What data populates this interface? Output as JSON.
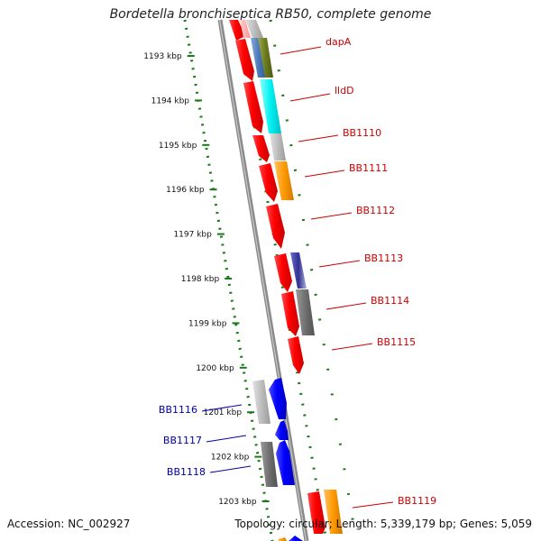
{
  "title": "Bordetella bronchiseptica RB50, complete genome",
  "footer": {
    "accession": "Accession: NC_002927",
    "summary": "Topology: circular; Length: 5,339,179 bp; Genes: 5,059"
  },
  "colors": {
    "red": "#ff0000",
    "blue": "#0000ff",
    "label_red": "#cc0000",
    "label_blue": "#0000aa",
    "ruler": "#1a7a1a",
    "backbone": "#888888"
  },
  "ruler_ticks": [
    {
      "label": "1193 kbp",
      "kbp": 1193
    },
    {
      "label": "1194 kbp",
      "kbp": 1194
    },
    {
      "label": "1195 kbp",
      "kbp": 1195
    },
    {
      "label": "1196 kbp",
      "kbp": 1196
    },
    {
      "label": "1197 kbp",
      "kbp": 1197
    },
    {
      "label": "1198 kbp",
      "kbp": 1198
    },
    {
      "label": "1199 kbp",
      "kbp": 1199
    },
    {
      "label": "1200 kbp",
      "kbp": 1200
    },
    {
      "label": "1201 kbp",
      "kbp": 1201
    },
    {
      "label": "1202 kbp",
      "kbp": 1202
    },
    {
      "label": "1203 kbp",
      "kbp": 1203
    }
  ],
  "genes_right": [
    {
      "label": "dapA",
      "color": "#cc0000"
    },
    {
      "label": "lldD",
      "color": "#cc0000"
    },
    {
      "label": "BB1110",
      "color": "#cc0000"
    },
    {
      "label": "BB1111",
      "color": "#cc0000"
    },
    {
      "label": "BB1112",
      "color": "#cc0000"
    },
    {
      "label": "BB1113",
      "color": "#cc0000"
    },
    {
      "label": "BB1114",
      "color": "#cc0000"
    },
    {
      "label": "BB1115",
      "color": "#cc0000"
    },
    {
      "label": "BB1119",
      "color": "#cc0000"
    }
  ],
  "genes_left": [
    {
      "label": "BB1116",
      "color": "#0000aa"
    },
    {
      "label": "BB1117",
      "color": "#0000aa"
    },
    {
      "label": "BB1118",
      "color": "#0000aa"
    }
  ]
}
